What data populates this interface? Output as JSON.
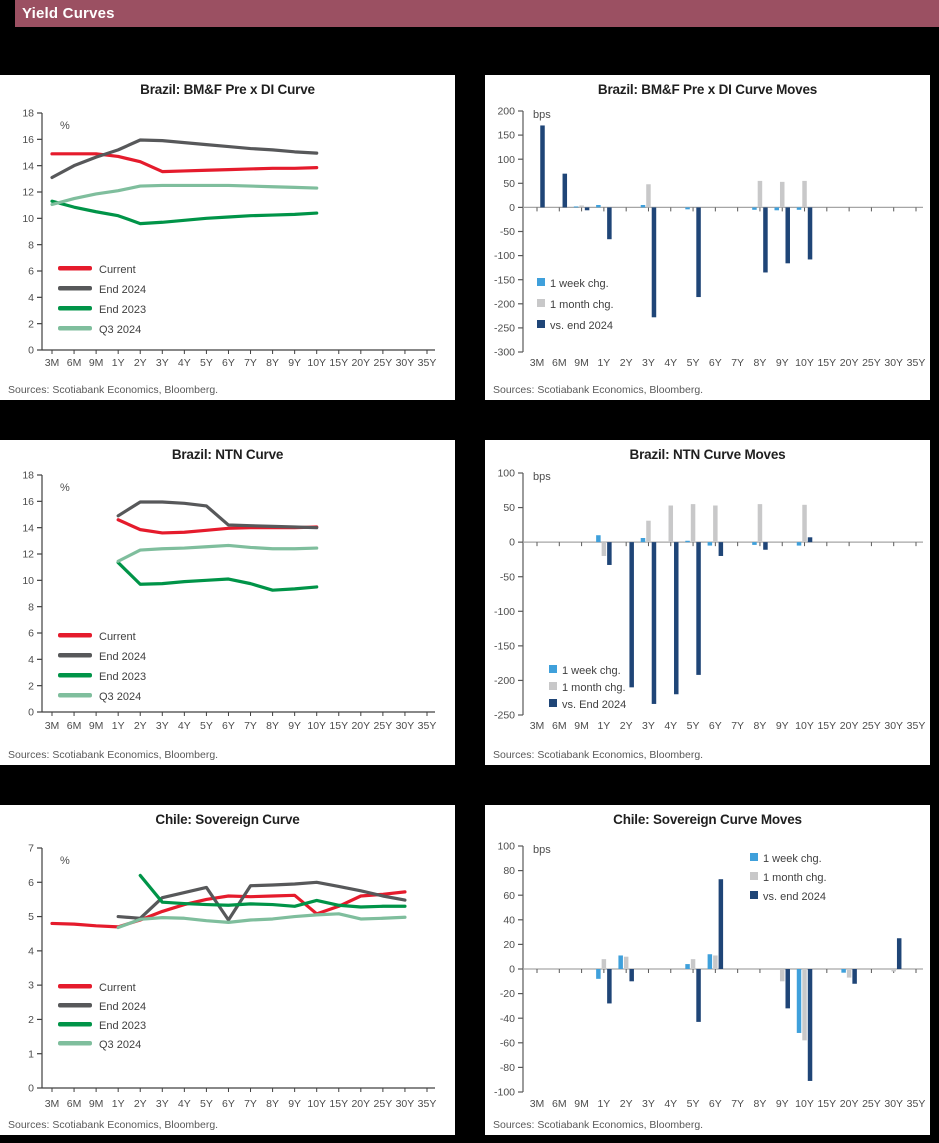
{
  "page": {
    "header_title": "Yield Curves"
  },
  "colors": {
    "header_bg": "#9B5062",
    "page_bg": "#000000",
    "panel_bg": "#FFFFFF",
    "red": "#E51B2C",
    "dark_gray": "#57585A",
    "dark_green": "#009448",
    "light_green": "#7FBE9D",
    "light_blue": "#3FA0DB",
    "bar_gray": "#C8C8C9",
    "navy": "#1F4577",
    "axis": "#595959",
    "zero_line": "#A6A6A6",
    "tick_text": "#4D4D4D",
    "source_text": "#595959"
  },
  "chart_data": [
    {
      "id": "brazil-bmf-pre-di-curve",
      "type": "line",
      "title": "Brazil: BM&F Pre x DI Curve",
      "unit": "%",
      "ylim": [
        0,
        18
      ],
      "ystep": 2,
      "grid": false,
      "legend_position": "lower-left",
      "categories": [
        "3M",
        "6M",
        "9M",
        "1Y",
        "2Y",
        "3Y",
        "4Y",
        "5Y",
        "6Y",
        "7Y",
        "8Y",
        "9Y",
        "10Y",
        "15Y",
        "20Y",
        "25Y",
        "30Y",
        "35Y"
      ],
      "series": [
        {
          "name": "Current",
          "color": "red",
          "values": [
            14.9,
            14.9,
            14.9,
            14.7,
            14.3,
            13.55,
            13.6,
            13.65,
            13.7,
            13.75,
            13.8,
            13.8,
            13.85,
            null,
            null,
            null,
            null,
            null
          ]
        },
        {
          "name": "End 2024",
          "color": "dark_gray",
          "values": [
            13.1,
            14.0,
            14.65,
            15.2,
            15.95,
            15.9,
            15.75,
            15.6,
            15.45,
            15.3,
            15.2,
            15.05,
            14.95,
            null,
            null,
            null,
            null,
            null
          ]
        },
        {
          "name": "End 2023",
          "color": "dark_green",
          "values": [
            11.3,
            10.85,
            10.5,
            10.2,
            9.6,
            9.7,
            9.85,
            10.0,
            10.1,
            10.2,
            10.25,
            10.3,
            10.4,
            null,
            null,
            null,
            null,
            null
          ]
        },
        {
          "name": "Q3 2024",
          "color": "light_green",
          "values": [
            11.05,
            11.5,
            11.85,
            12.1,
            12.45,
            12.5,
            12.5,
            12.5,
            12.5,
            12.45,
            12.4,
            12.35,
            12.3,
            null,
            null,
            null,
            null,
            null
          ]
        }
      ],
      "source": "Sources: Scotiabank Economics, Bloomberg."
    },
    {
      "id": "brazil-bmf-pre-di-curve-moves",
      "type": "bar",
      "title": "Brazil: BM&F Pre x DI Curve Moves",
      "unit": "bps",
      "ylim": [
        -300,
        200
      ],
      "ystep": 50,
      "grid": false,
      "legend_position": "lower-left",
      "categories": [
        "3M",
        "6M",
        "9M",
        "1Y",
        "2Y",
        "3Y",
        "4Y",
        "5Y",
        "6Y",
        "7Y",
        "8Y",
        "9Y",
        "10Y",
        "15Y",
        "20Y",
        "25Y",
        "30Y",
        "35Y"
      ],
      "series": [
        {
          "name": "1 week chg.",
          "color": "light_blue",
          "values": [
            0,
            0,
            2,
            5,
            0,
            5,
            0,
            -4,
            0,
            0,
            -5,
            -6,
            -5,
            0,
            0,
            0,
            0,
            0
          ]
        },
        {
          "name": "1 month chg.",
          "color": "bar_gray",
          "values": [
            0,
            0,
            4,
            0,
            0,
            48,
            0,
            0,
            0,
            0,
            55,
            53,
            55,
            0,
            0,
            0,
            0,
            0
          ]
        },
        {
          "name": "vs. end 2024",
          "color": "navy",
          "values": [
            170,
            70,
            -6,
            -66,
            0,
            -228,
            0,
            -186,
            0,
            0,
            -135,
            -116,
            -108,
            0,
            0,
            0,
            0,
            0
          ]
        }
      ],
      "source": "Sources: Scotiabank Economics, Bloomberg."
    },
    {
      "id": "brazil-ntn-curve",
      "type": "line",
      "title": "Brazil: NTN Curve",
      "unit": "%",
      "ylim": [
        0,
        18
      ],
      "ystep": 2,
      "grid": false,
      "legend_position": "lower-left",
      "categories": [
        "3M",
        "6M",
        "9M",
        "1Y",
        "2Y",
        "3Y",
        "4Y",
        "5Y",
        "6Y",
        "7Y",
        "8Y",
        "9Y",
        "10Y",
        "15Y",
        "20Y",
        "25Y",
        "30Y",
        "35Y"
      ],
      "series": [
        {
          "name": "Current",
          "color": "red",
          "values": [
            null,
            null,
            null,
            14.6,
            13.85,
            13.6,
            13.65,
            13.8,
            13.95,
            14.0,
            14.0,
            14.0,
            14.05,
            null,
            null,
            null,
            null,
            null
          ]
        },
        {
          "name": "End 2024",
          "color": "dark_gray",
          "values": [
            null,
            null,
            null,
            14.9,
            15.95,
            15.95,
            15.85,
            15.65,
            14.2,
            14.15,
            14.1,
            14.05,
            14.0,
            null,
            null,
            null,
            null,
            null
          ]
        },
        {
          "name": "End 2023",
          "color": "dark_green",
          "values": [
            null,
            null,
            null,
            11.35,
            9.7,
            9.75,
            9.9,
            10.0,
            10.1,
            9.75,
            9.25,
            9.35,
            9.5,
            null,
            null,
            null,
            null,
            null
          ]
        },
        {
          "name": "Q3 2024",
          "color": "light_green",
          "values": [
            null,
            null,
            null,
            11.45,
            12.3,
            12.4,
            12.45,
            12.55,
            12.65,
            12.5,
            12.4,
            12.4,
            12.45,
            null,
            null,
            null,
            null,
            null
          ]
        }
      ],
      "source": "Sources: Scotiabank Economics, Bloomberg."
    },
    {
      "id": "brazil-ntn-curve-moves",
      "type": "bar",
      "title": "Brazil: NTN Curve Moves",
      "unit": "bps",
      "ylim": [
        -250,
        100
      ],
      "ystep": 50,
      "grid": false,
      "legend_position": "lower-left",
      "categories": [
        "3M",
        "6M",
        "9M",
        "1Y",
        "2Y",
        "3Y",
        "4Y",
        "5Y",
        "6Y",
        "7Y",
        "8Y",
        "9Y",
        "10Y",
        "15Y",
        "20Y",
        "25Y",
        "30Y",
        "35Y"
      ],
      "series": [
        {
          "name": "1 week chg.",
          "color": "light_blue",
          "values": [
            0,
            0,
            0,
            10,
            0,
            6,
            0,
            2,
            -5,
            0,
            -4,
            0,
            -5,
            0,
            0,
            0,
            0,
            0
          ]
        },
        {
          "name": "1 month chg.",
          "color": "bar_gray",
          "values": [
            0,
            0,
            0,
            -20,
            0,
            31,
            53,
            55,
            53,
            0,
            55,
            0,
            54,
            0,
            0,
            0,
            0,
            0
          ]
        },
        {
          "name": "vs. End 2024",
          "color": "navy",
          "values": [
            0,
            0,
            0,
            -33,
            -210,
            -234,
            -220,
            -192,
            -20,
            0,
            -11,
            0,
            7,
            0,
            0,
            0,
            0,
            0
          ]
        }
      ],
      "source": "Sources: Scotiabank Economics, Bloomberg."
    },
    {
      "id": "chile-sovereign-curve",
      "type": "line",
      "title": "Chile: Sovereign Curve",
      "unit": "%",
      "ylim": [
        0,
        7
      ],
      "ystep": 1,
      "grid": false,
      "legend_position": "lower-left",
      "categories": [
        "3M",
        "6M",
        "9M",
        "1Y",
        "2Y",
        "3Y",
        "4Y",
        "5Y",
        "6Y",
        "7Y",
        "8Y",
        "9Y",
        "10Y",
        "15Y",
        "20Y",
        "25Y",
        "30Y",
        "35Y"
      ],
      "series": [
        {
          "name": "Current",
          "color": "red",
          "values": [
            4.8,
            4.78,
            4.73,
            4.7,
            4.9,
            5.15,
            5.35,
            5.5,
            5.6,
            5.58,
            5.6,
            5.62,
            5.08,
            5.3,
            5.6,
            5.65,
            5.72,
            null
          ]
        },
        {
          "name": "End 2024",
          "color": "dark_gray",
          "values": [
            null,
            null,
            null,
            5.0,
            4.95,
            5.55,
            5.7,
            5.85,
            4.9,
            5.9,
            5.92,
            5.95,
            6.0,
            5.88,
            5.75,
            5.6,
            5.48,
            null
          ]
        },
        {
          "name": "End 2023",
          "color": "dark_green",
          "values": [
            null,
            null,
            null,
            null,
            6.2,
            5.42,
            5.38,
            5.35,
            5.33,
            5.37,
            5.35,
            5.3,
            5.47,
            5.33,
            5.28,
            5.3,
            5.3,
            null
          ]
        },
        {
          "name": "Q3 2024",
          "color": "light_green",
          "values": [
            null,
            null,
            null,
            4.68,
            4.92,
            4.97,
            4.95,
            4.88,
            4.83,
            4.9,
            4.93,
            5.0,
            5.05,
            5.08,
            4.93,
            4.95,
            4.98,
            null
          ]
        }
      ],
      "source": "Sources: Scotiabank Economics, Bloomberg."
    },
    {
      "id": "chile-sovereign-curve-moves",
      "type": "bar",
      "title": "Chile: Sovereign Curve Moves",
      "unit": "bps",
      "ylim": [
        -100,
        100
      ],
      "ystep": 20,
      "grid": false,
      "legend_position": "upper-right",
      "categories": [
        "3M",
        "6M",
        "9M",
        "1Y",
        "2Y",
        "3Y",
        "4Y",
        "5Y",
        "6Y",
        "7Y",
        "8Y",
        "9Y",
        "10Y",
        "15Y",
        "20Y",
        "25Y",
        "30Y",
        "35Y"
      ],
      "series": [
        {
          "name": "1 week chg.",
          "color": "light_blue",
          "values": [
            0,
            0,
            0,
            -8,
            11,
            0,
            0,
            4,
            12,
            0,
            0,
            0,
            -52,
            0,
            -3,
            0,
            0,
            0
          ]
        },
        {
          "name": "1 month chg.",
          "color": "bar_gray",
          "values": [
            0,
            0,
            0,
            8,
            10,
            0,
            0,
            8,
            11,
            0,
            0,
            -10,
            -58,
            0,
            -7,
            0,
            -2,
            0
          ]
        },
        {
          "name": "vs. end 2024",
          "color": "navy",
          "values": [
            0,
            0,
            0,
            -28,
            -10,
            0,
            0,
            -43,
            73,
            0,
            0,
            -32,
            -91,
            0,
            -12,
            0,
            25,
            0
          ]
        }
      ],
      "source": "Sources: Scotiabank Economics, Bloomberg."
    }
  ]
}
